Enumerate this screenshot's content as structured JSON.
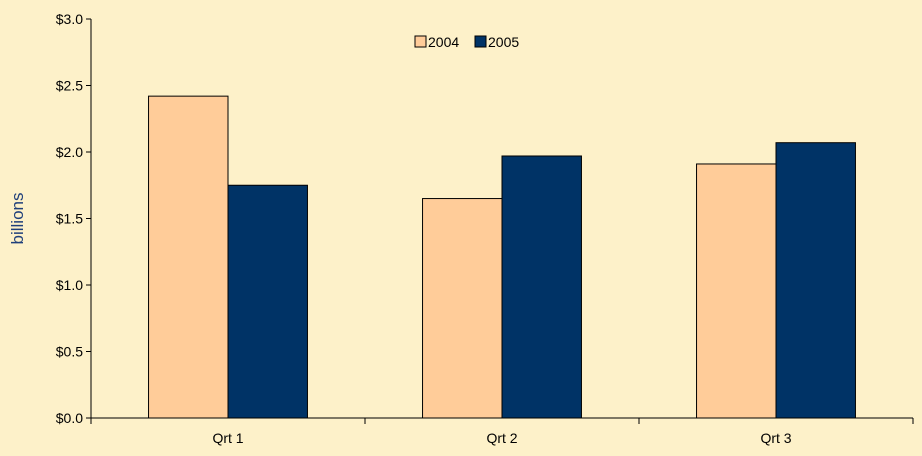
{
  "chart_data": {
    "type": "bar",
    "title": "",
    "xlabel": "",
    "ylabel": "billions",
    "categories": [
      "Qrt 1",
      "Qrt 2",
      "Qrt 3"
    ],
    "series": [
      {
        "name": "2004",
        "values": [
          2.42,
          1.65,
          1.91
        ],
        "color": "#ffcc99"
      },
      {
        "name": "2005",
        "values": [
          1.75,
          1.97,
          2.07
        ],
        "color": "#003366"
      }
    ],
    "ylim": [
      0,
      3.0
    ],
    "yticks": [
      0,
      0.5,
      1.0,
      1.5,
      2.0,
      2.5,
      3.0
    ],
    "ytick_labels": [
      "$0.0",
      "$0.5",
      "$1.0",
      "$1.5",
      "$2.0",
      "$2.5",
      "$3.0"
    ],
    "grid": false,
    "legend_position": "top-center"
  },
  "colors": {
    "background": "#fdf1c9",
    "axis": "#000000",
    "ylabel": "#1f3f7a"
  }
}
